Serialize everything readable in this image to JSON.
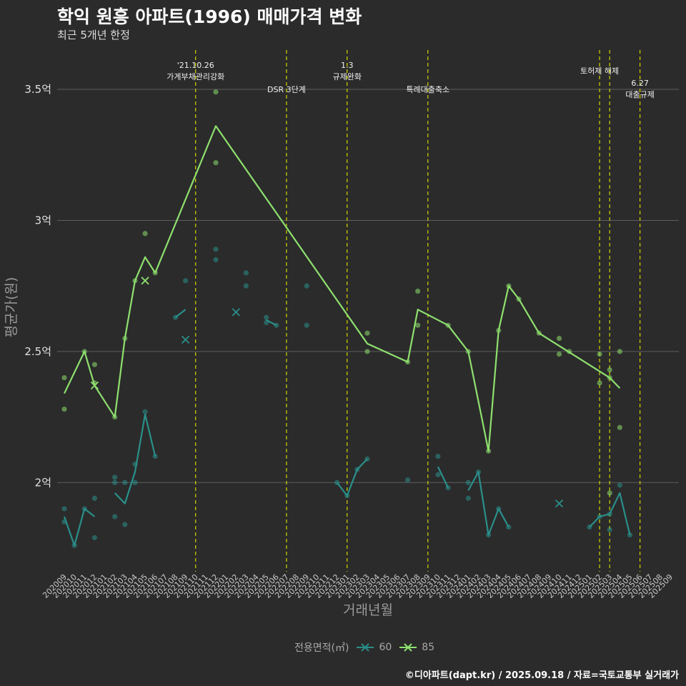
{
  "header": {
    "title": "학익 원흥 아파트(1996) 매매가격 변화",
    "subtitle": "최근 5개년 한정"
  },
  "caption": "©디아파트(dapt.kr) / 2025.09.18 / 자료=국토교통부 실거래가",
  "legend": {
    "title": "전용면적(㎡)",
    "items": [
      {
        "label": "60",
        "color": "#2a8f8a"
      },
      {
        "label": "85",
        "color": "#8ee06e"
      }
    ]
  },
  "chart_data": {
    "type": "line",
    "title": "학익 원흥 아파트(1996) 매매가격 변화",
    "xlabel": "거래년월",
    "ylabel": "평균가(원)",
    "ylim": [
      1.66,
      3.65
    ],
    "yticks": [
      {
        "value": 2.0,
        "label": "2억"
      },
      {
        "value": 2.5,
        "label": "2.5억"
      },
      {
        "value": 3.0,
        "label": "3억"
      },
      {
        "value": 3.5,
        "label": "3.5억"
      }
    ],
    "categories": [
      "202009",
      "202010",
      "202011",
      "202012",
      "202101",
      "202102",
      "202103",
      "202104",
      "202105",
      "202106",
      "202107",
      "202108",
      "202109",
      "202110",
      "202111",
      "202112",
      "202201",
      "202202",
      "202203",
      "202204",
      "202205",
      "202206",
      "202207",
      "202208",
      "202209",
      "202210",
      "202211",
      "202212",
      "202301",
      "202302",
      "202303",
      "202304",
      "202305",
      "202306",
      "202307",
      "202308",
      "202309",
      "202310",
      "202311",
      "202312",
      "202401",
      "202402",
      "202403",
      "202404",
      "202405",
      "202406",
      "202407",
      "202408",
      "202409",
      "202410",
      "202411",
      "202412",
      "202501",
      "202502",
      "202503",
      "202504",
      "202505",
      "202506",
      "202507",
      "202508",
      "202509"
    ],
    "events": [
      {
        "x": "202110",
        "lines": [
          "'21.10.26",
          "가계부채관리강화"
        ],
        "level": 0
      },
      {
        "x": "202207",
        "lines": [
          "DSR 3단계"
        ],
        "level": 2
      },
      {
        "x": "202301",
        "lines": [
          "1.3",
          "규제완화"
        ],
        "level": 0
      },
      {
        "x": "202309",
        "lines": [
          "특례대출축소"
        ],
        "level": 2
      },
      {
        "x": "202502",
        "lines": [
          "토허제 해제"
        ],
        "level": 1
      },
      {
        "x": "202503",
        "lines": [],
        "level": 0
      },
      {
        "x": "202506",
        "lines": [
          "6.27",
          "대출규제"
        ],
        "level": 3
      }
    ],
    "series": [
      {
        "name": "60",
        "color": "#2a8f8a",
        "line": [
          [
            "202009",
            1.87
          ],
          [
            "202010",
            1.76
          ],
          [
            "202011",
            1.9
          ],
          [
            "202012",
            1.87
          ],
          null,
          [
            "202102",
            1.96
          ],
          [
            "202103",
            1.92
          ],
          [
            "202104",
            2.04
          ],
          [
            "202105",
            2.26
          ],
          [
            "202106",
            2.1
          ],
          null,
          [
            "202108",
            2.63
          ],
          [
            "202109",
            2.66
          ],
          null,
          [
            "202202",
            2.65
          ],
          null,
          [
            "202205",
            2.62
          ],
          [
            "202206",
            2.6
          ],
          null,
          [
            "202212",
            2.0
          ],
          [
            "202301",
            1.95
          ],
          [
            "202302",
            2.05
          ],
          [
            "202303",
            2.09
          ],
          null,
          [
            "202310",
            2.06
          ],
          [
            "202311",
            1.98
          ],
          null,
          [
            "202401",
            1.97
          ],
          [
            "202402",
            2.04
          ],
          [
            "202403",
            1.8
          ],
          [
            "202404",
            1.9
          ],
          [
            "202405",
            1.83
          ],
          null,
          [
            "202410",
            1.92
          ],
          null,
          [
            "202501",
            1.83
          ],
          [
            "202502",
            1.87
          ],
          [
            "202503",
            1.88
          ],
          [
            "202504",
            1.96
          ],
          [
            "202505",
            1.8
          ]
        ],
        "points": [
          [
            "202009",
            1.9
          ],
          [
            "202009",
            1.85
          ],
          [
            "202010",
            1.76
          ],
          [
            "202011",
            1.9
          ],
          [
            "202012",
            1.94
          ],
          [
            "202012",
            1.79
          ],
          [
            "202102",
            1.87
          ],
          [
            "202102",
            2.02
          ],
          [
            "202102",
            2.0
          ],
          [
            "202103",
            2.0
          ],
          [
            "202103",
            1.84
          ],
          [
            "202104",
            2.07
          ],
          [
            "202104",
            2.0
          ],
          [
            "202105",
            2.27
          ],
          [
            "202106",
            2.1
          ],
          [
            "202108",
            2.63
          ],
          [
            "202109",
            2.77
          ],
          [
            "202112",
            2.89
          ],
          [
            "202112",
            2.85
          ],
          [
            "202203",
            2.8
          ],
          [
            "202203",
            2.75
          ],
          [
            "202205",
            2.63
          ],
          [
            "202205",
            2.61
          ],
          [
            "202206",
            2.6
          ],
          [
            "202209",
            2.75
          ],
          [
            "202209",
            2.6
          ],
          [
            "202212",
            2.0
          ],
          [
            "202301",
            1.95
          ],
          [
            "202302",
            2.05
          ],
          [
            "202303",
            2.09
          ],
          [
            "202307",
            2.01
          ],
          [
            "202310",
            2.1
          ],
          [
            "202310",
            2.03
          ],
          [
            "202311",
            1.98
          ],
          [
            "202401",
            2.0
          ],
          [
            "202401",
            1.94
          ],
          [
            "202402",
            2.04
          ],
          [
            "202403",
            1.8
          ],
          [
            "202404",
            1.9
          ],
          [
            "202405",
            1.83
          ],
          [
            "202501",
            1.83
          ],
          [
            "202502",
            1.87
          ],
          [
            "202503",
            1.82
          ],
          [
            "202503",
            1.88
          ],
          [
            "202504",
            1.99
          ],
          [
            "202505",
            1.8
          ]
        ],
        "crosses": [
          [
            "202109",
            2.545
          ],
          [
            "202202",
            2.65
          ],
          [
            "202410",
            1.92
          ]
        ]
      },
      {
        "name": "85",
        "color": "#8ee06e",
        "line": [
          [
            "202009",
            2.34
          ],
          [
            "202011",
            2.5
          ],
          [
            "202012",
            2.37
          ],
          [
            "202102",
            2.25
          ],
          [
            "202103",
            2.55
          ],
          [
            "202104",
            2.77
          ],
          [
            "202105",
            2.86
          ],
          [
            "202106",
            2.8
          ],
          [
            "202112",
            3.36
          ],
          [
            "202303",
            2.53
          ],
          [
            "202307",
            2.46
          ],
          [
            "202308",
            2.66
          ],
          [
            "202311",
            2.6
          ],
          [
            "202401",
            2.5
          ],
          [
            "202403",
            2.12
          ],
          [
            "202404",
            2.58
          ],
          [
            "202405",
            2.75
          ],
          [
            "202406",
            2.7
          ],
          [
            "202408",
            2.57
          ],
          [
            "202503",
            2.4
          ],
          [
            "202504",
            2.36
          ]
        ],
        "points": [
          [
            "202009",
            2.4
          ],
          [
            "202009",
            2.28
          ],
          [
            "202011",
            2.5
          ],
          [
            "202012",
            2.45
          ],
          [
            "202012",
            2.38
          ],
          [
            "202102",
            2.25
          ],
          [
            "202103",
            2.55
          ],
          [
            "202104",
            2.77
          ],
          [
            "202105",
            2.95
          ],
          [
            "202106",
            2.8
          ],
          [
            "202112",
            3.49
          ],
          [
            "202112",
            3.22
          ],
          [
            "202303",
            2.57
          ],
          [
            "202303",
            2.5
          ],
          [
            "202307",
            2.46
          ],
          [
            "202308",
            2.73
          ],
          [
            "202308",
            2.6
          ],
          [
            "202311",
            2.6
          ],
          [
            "202401",
            2.5
          ],
          [
            "202403",
            2.12
          ],
          [
            "202404",
            2.58
          ],
          [
            "202405",
            2.75
          ],
          [
            "202406",
            2.7
          ],
          [
            "202408",
            2.57
          ],
          [
            "202410",
            2.55
          ],
          [
            "202410",
            2.49
          ],
          [
            "202411",
            2.5
          ],
          [
            "202502",
            2.49
          ],
          [
            "202502",
            2.38
          ],
          [
            "202503",
            2.43
          ],
          [
            "202503",
            2.4
          ],
          [
            "202503",
            1.96
          ],
          [
            "202504",
            2.5
          ],
          [
            "202504",
            2.21
          ]
        ],
        "crosses": [
          [
            "202012",
            2.37
          ],
          [
            "202105",
            2.77
          ]
        ]
      }
    ]
  }
}
